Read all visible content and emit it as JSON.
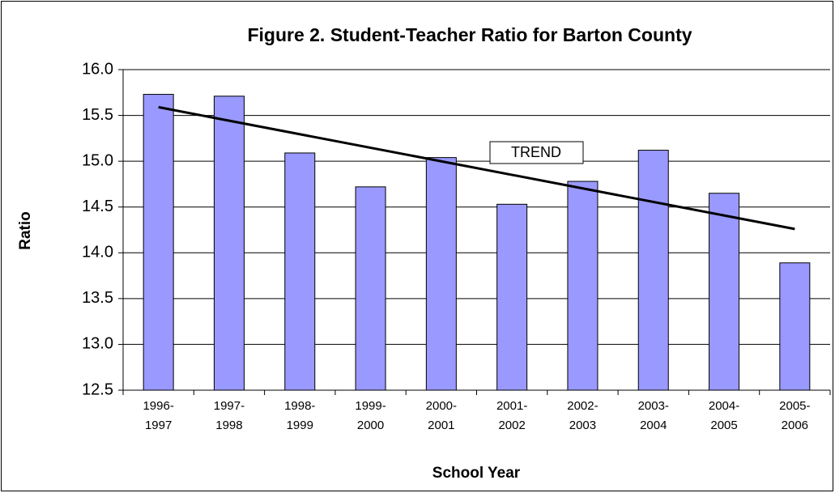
{
  "chart_data": {
    "type": "bar",
    "title": "Figure 2. Student-Teacher Ratio for Barton County",
    "x_label": "School Year",
    "y_label": "Ratio",
    "categories": [
      "1996-1997",
      "1997-1998",
      "1998-1999",
      "1999-2000",
      "2000-2001",
      "2001-2002",
      "2002-2003",
      "2003-2004",
      "2004-2005",
      "2005-2006"
    ],
    "values": [
      15.73,
      15.71,
      15.09,
      14.72,
      15.04,
      14.53,
      14.78,
      15.12,
      14.65,
      13.89
    ],
    "color": "#9999ff",
    "trend": {
      "label": "TREND",
      "values": [
        15.59,
        14.26
      ],
      "color": "#000000"
    },
    "ylim": [
      12.5,
      16.0
    ],
    "yticks": [
      {
        "value": 12.5,
        "label": "12.5"
      },
      {
        "value": 13.0,
        "label": "13.0"
      },
      {
        "value": 13.5,
        "label": "13.5"
      },
      {
        "value": 14.0,
        "label": "14.0"
      },
      {
        "value": 14.5,
        "label": "14.5"
      },
      {
        "value": 15.0,
        "label": "15.0"
      },
      {
        "value": 15.5,
        "label": "15.5"
      },
      {
        "value": 16.0,
        "label": "16.0"
      }
    ],
    "grid": true
  }
}
